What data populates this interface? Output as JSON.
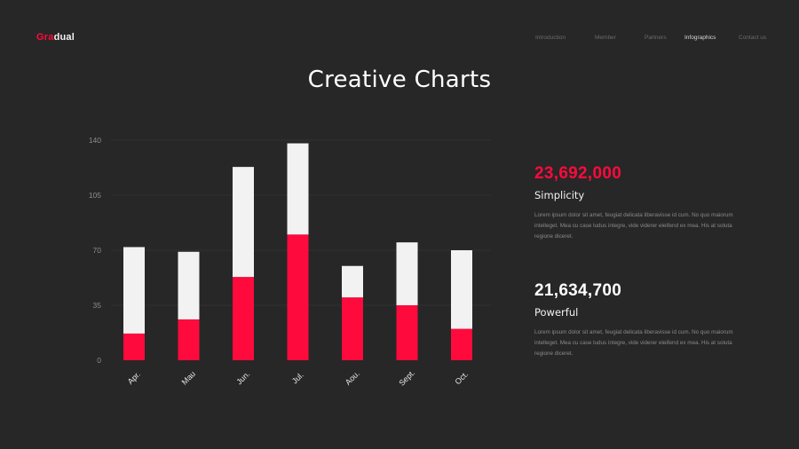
{
  "brand": {
    "logo_accent": "Gra",
    "logo_rest": "dual",
    "accent_color": "#ff0a3c"
  },
  "nav": {
    "items": [
      {
        "label": "Introduction",
        "active": false
      },
      {
        "label": "Member",
        "active": false
      },
      {
        "label": "Partners",
        "active": false
      },
      {
        "label": "Infographics",
        "active": true
      },
      {
        "label": "Contact us",
        "active": false
      }
    ]
  },
  "page": {
    "title": "Creative Charts"
  },
  "stats": [
    {
      "value": "23,692,000",
      "label": "Simplicity",
      "description": "Lorem ipsum dolor sit amet, feugiat delicata liberavisse id cum. No quo maiorum intelleget. Mea cu case ludus integre, vide viderer eleifend ex mea. His at soluta regione diceret."
    },
    {
      "value": "21,634,700",
      "label": "Powerful",
      "description": "Lorem ipsum dolor sit amet, feugiat delicata liberavisse id cum. No quo maiorum intelleget. Mea cu case ludus integre, vide viderer eleifend ex mea. His at soluta regione diceret."
    }
  ],
  "chart_data": {
    "type": "bar",
    "stacked": true,
    "title": "",
    "xlabel": "",
    "ylabel": "",
    "categories": [
      "Apr.",
      "Mau",
      "Jun.",
      "Jul.",
      "Aou.",
      "Sept.",
      "Oct."
    ],
    "series": [
      {
        "values": [
          17,
          26,
          53,
          80,
          40,
          35,
          20
        ],
        "color": "#ff0a3c"
      },
      {
        "values": [
          55,
          43,
          70,
          58,
          20,
          40,
          50
        ],
        "color": "#f2f2f2"
      }
    ],
    "ylim": [
      0,
      140
    ],
    "yticks": [
      0,
      35,
      70,
      105,
      140
    ],
    "grid": true,
    "legend": "none"
  }
}
